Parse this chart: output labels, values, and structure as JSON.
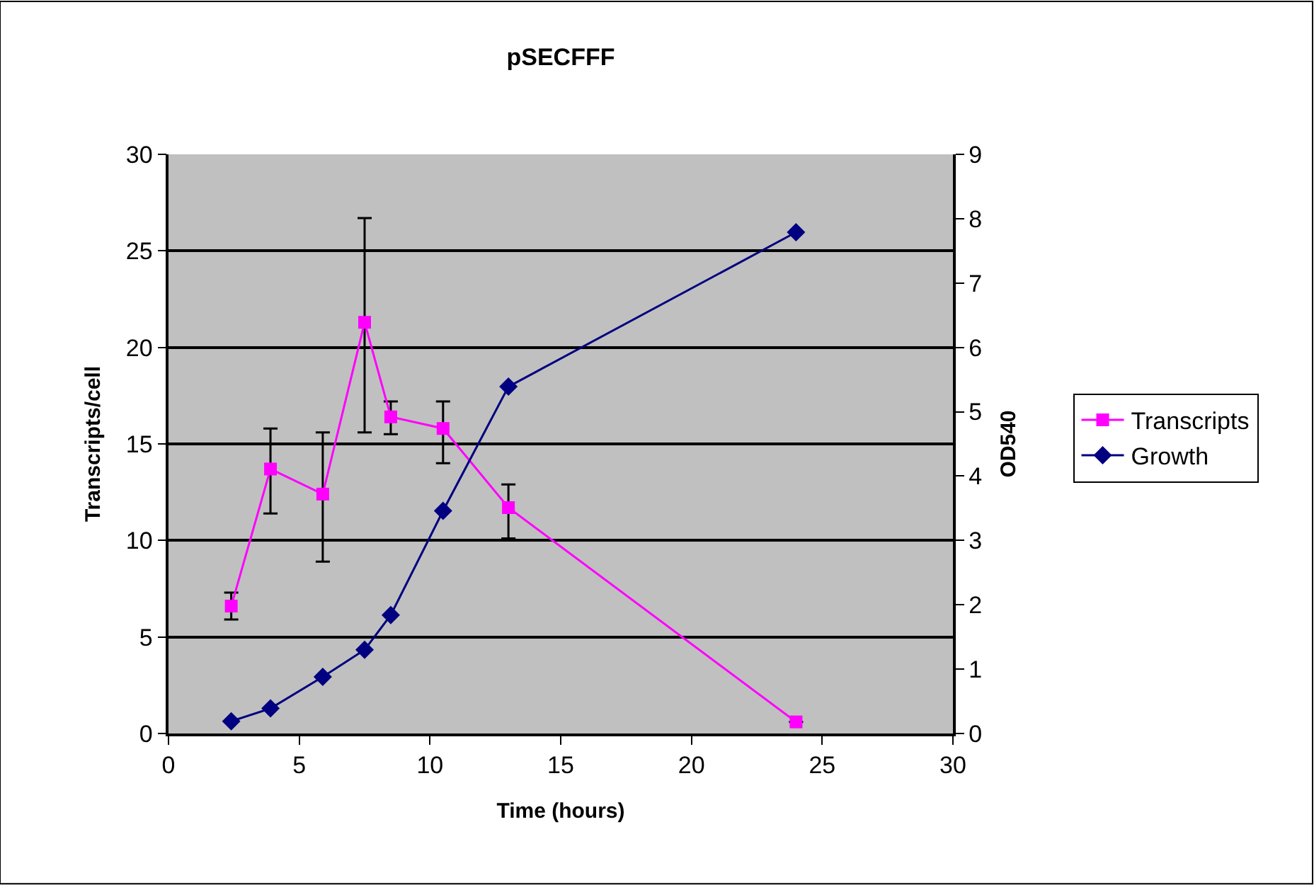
{
  "chart_data": {
    "type": "line",
    "title": "pSECFFF",
    "xlabel": "Time (hours)",
    "ylabel": "Transcripts/cell",
    "y2label": "OD540",
    "x": [
      2.4,
      3.9,
      5.9,
      7.5,
      8.5,
      10.5,
      13,
      24
    ],
    "series": [
      {
        "name": "Transcripts",
        "color": "#ff00ff",
        "marker": "square",
        "values": [
          6.6,
          13.7,
          12.4,
          21.3,
          16.4,
          15.8,
          11.7,
          0.6
        ],
        "errors": [
          [
            5.9,
            7.3
          ],
          [
            11.4,
            15.8
          ],
          [
            8.9,
            15.6
          ],
          [
            15.6,
            26.7
          ],
          [
            15.5,
            17.2
          ],
          [
            14.0,
            17.2
          ],
          [
            10.1,
            12.9
          ],
          null
        ]
      },
      {
        "name": "Growth",
        "color": "#000080",
        "marker": "diamond",
        "axis": "y2",
        "values": [
          0.19,
          0.39,
          0.88,
          1.3,
          1.84,
          3.46,
          5.39,
          7.79
        ]
      }
    ],
    "xlim": [
      0,
      30
    ],
    "xticks": [
      0,
      5,
      10,
      15,
      20,
      25,
      30
    ],
    "ylim": [
      0,
      30
    ],
    "yticks": [
      0,
      5,
      10,
      15,
      20,
      25,
      30
    ],
    "y2lim": [
      0,
      9
    ],
    "y2ticks": [
      0,
      1,
      2,
      3,
      4,
      5,
      6,
      7,
      8,
      9
    ],
    "grid": "y",
    "legend": "right",
    "line_style": "solid"
  }
}
